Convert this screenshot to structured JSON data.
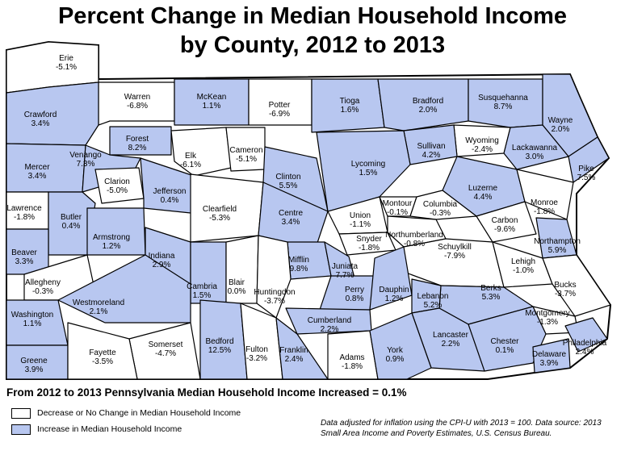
{
  "title_line1": "Percent Change in Median Household Income",
  "title_line2": "by County, 2012 to 2013",
  "subtitle": "From 2012 to 2013 Pennsylvania Median Household Income Increased = 0.1%",
  "legend": {
    "decrease": {
      "label": "Decrease or No Change in Median Household Income",
      "color": "#ffffff"
    },
    "increase": {
      "label": "Increase in Median Household Income",
      "color": "#b8c7f0"
    }
  },
  "note": "Data adjusted for inflation using the CPI-U with 2013 = 100. Data source: 2013 Small Area Income and Poverty Estimates, U.S. Census Bureau.",
  "counties": [
    {
      "name": "Erie",
      "value": "-5.1%",
      "increase": false
    },
    {
      "name": "Warren",
      "value": "-6.8%",
      "increase": false
    },
    {
      "name": "McKean",
      "value": "1.1%",
      "increase": true
    },
    {
      "name": "Potter",
      "value": "-6.9%",
      "increase": false
    },
    {
      "name": "Tioga",
      "value": "1.6%",
      "increase": true
    },
    {
      "name": "Bradford",
      "value": "2.0%",
      "increase": true
    },
    {
      "name": "Susquehanna",
      "value": "8.7%",
      "increase": true
    },
    {
      "name": "Wayne",
      "value": "2.0%",
      "increase": true
    },
    {
      "name": "Crawford",
      "value": "3.4%",
      "increase": true
    },
    {
      "name": "Forest",
      "value": "8.2%",
      "increase": true
    },
    {
      "name": "Elk",
      "value": "-6.1%",
      "increase": false
    },
    {
      "name": "Cameron",
      "value": "-5.1%",
      "increase": false
    },
    {
      "name": "Wyoming",
      "value": "-2.4%",
      "increase": false
    },
    {
      "name": "Sullivan",
      "value": "4.2%",
      "increase": true
    },
    {
      "name": "Lackawanna",
      "value": "3.0%",
      "increase": true
    },
    {
      "name": "Pike",
      "value": "7.5%",
      "increase": true
    },
    {
      "name": "Mercer",
      "value": "3.4%",
      "increase": true
    },
    {
      "name": "Venango",
      "value": "7.3%",
      "increase": true
    },
    {
      "name": "Clarion",
      "value": "-5.0%",
      "increase": false
    },
    {
      "name": "Jefferson",
      "value": "0.4%",
      "increase": true
    },
    {
      "name": "Clinton",
      "value": "5.5%",
      "increase": true
    },
    {
      "name": "Lycoming",
      "value": "1.5%",
      "increase": true
    },
    {
      "name": "Luzerne",
      "value": "4.4%",
      "increase": true
    },
    {
      "name": "Monroe",
      "value": "-1.8%",
      "increase": false
    },
    {
      "name": "Lawrence",
      "value": "-1.8%",
      "increase": false
    },
    {
      "name": "Butler",
      "value": "0.4%",
      "increase": true
    },
    {
      "name": "Clearfield",
      "value": "-5.3%",
      "increase": false
    },
    {
      "name": "Centre",
      "value": "3.4%",
      "increase": true
    },
    {
      "name": "Union",
      "value": "-1.1%",
      "increase": false
    },
    {
      "name": "Montour",
      "value": "-0.1%",
      "increase": false
    },
    {
      "name": "Columbia",
      "value": "-0.3%",
      "increase": false
    },
    {
      "name": "Northumberland",
      "value": "-0.8%",
      "increase": false
    },
    {
      "name": "Carbon",
      "value": "-9.6%",
      "increase": false
    },
    {
      "name": "Armstrong",
      "value": "1.2%",
      "increase": true
    },
    {
      "name": "Beaver",
      "value": "3.3%",
      "increase": true
    },
    {
      "name": "Snyder",
      "value": "-1.8%",
      "increase": false
    },
    {
      "name": "Schuylkill",
      "value": "-7.9%",
      "increase": false
    },
    {
      "name": "Northampton",
      "value": "5.9%",
      "increase": true
    },
    {
      "name": "Indiana",
      "value": "2.9%",
      "increase": true
    },
    {
      "name": "Mifflin",
      "value": "9.8%",
      "increase": true
    },
    {
      "name": "Juniata",
      "value": "7.7%",
      "increase": true
    },
    {
      "name": "Lehigh",
      "value": "-1.0%",
      "increase": false
    },
    {
      "name": "Allegheny",
      "value": "-0.3%",
      "increase": false
    },
    {
      "name": "Cambria",
      "value": "1.5%",
      "increase": true
    },
    {
      "name": "Blair",
      "value": "0.0%",
      "increase": false
    },
    {
      "name": "Huntingdon",
      "value": "-3.7%",
      "increase": false
    },
    {
      "name": "Perry",
      "value": "0.8%",
      "increase": true
    },
    {
      "name": "Dauphin",
      "value": "1.2%",
      "increase": true
    },
    {
      "name": "Berks",
      "value": "5.3%",
      "increase": true
    },
    {
      "name": "Bucks",
      "value": "-3.7%",
      "increase": false
    },
    {
      "name": "Westmoreland",
      "value": "2.1%",
      "increase": true
    },
    {
      "name": "Lebanon",
      "value": "5.2%",
      "increase": true
    },
    {
      "name": "Washington",
      "value": "1.1%",
      "increase": true
    },
    {
      "name": "Cumberland",
      "value": "2.2%",
      "increase": true
    },
    {
      "name": "Montgomery",
      "value": "-1.3%",
      "increase": false
    },
    {
      "name": "Somerset",
      "value": "-4.7%",
      "increase": false
    },
    {
      "name": "Lancaster",
      "value": "2.2%",
      "increase": true
    },
    {
      "name": "Chester",
      "value": "0.1%",
      "increase": true
    },
    {
      "name": "Philadelphia",
      "value": "2.4%",
      "increase": true
    },
    {
      "name": "Bedford",
      "value": "12.5%",
      "increase": true
    },
    {
      "name": "Fulton",
      "value": "-3.2%",
      "increase": false
    },
    {
      "name": "Franklin",
      "value": "2.4%",
      "increase": true
    },
    {
      "name": "Adams",
      "value": "-1.8%",
      "increase": false
    },
    {
      "name": "York",
      "value": "0.9%",
      "increase": true
    },
    {
      "name": "Delaware",
      "value": "3.9%",
      "increase": true
    },
    {
      "name": "Greene",
      "value": "3.9%",
      "increase": true
    },
    {
      "name": "Fayette",
      "value": "-3.5%",
      "increase": false
    }
  ]
}
